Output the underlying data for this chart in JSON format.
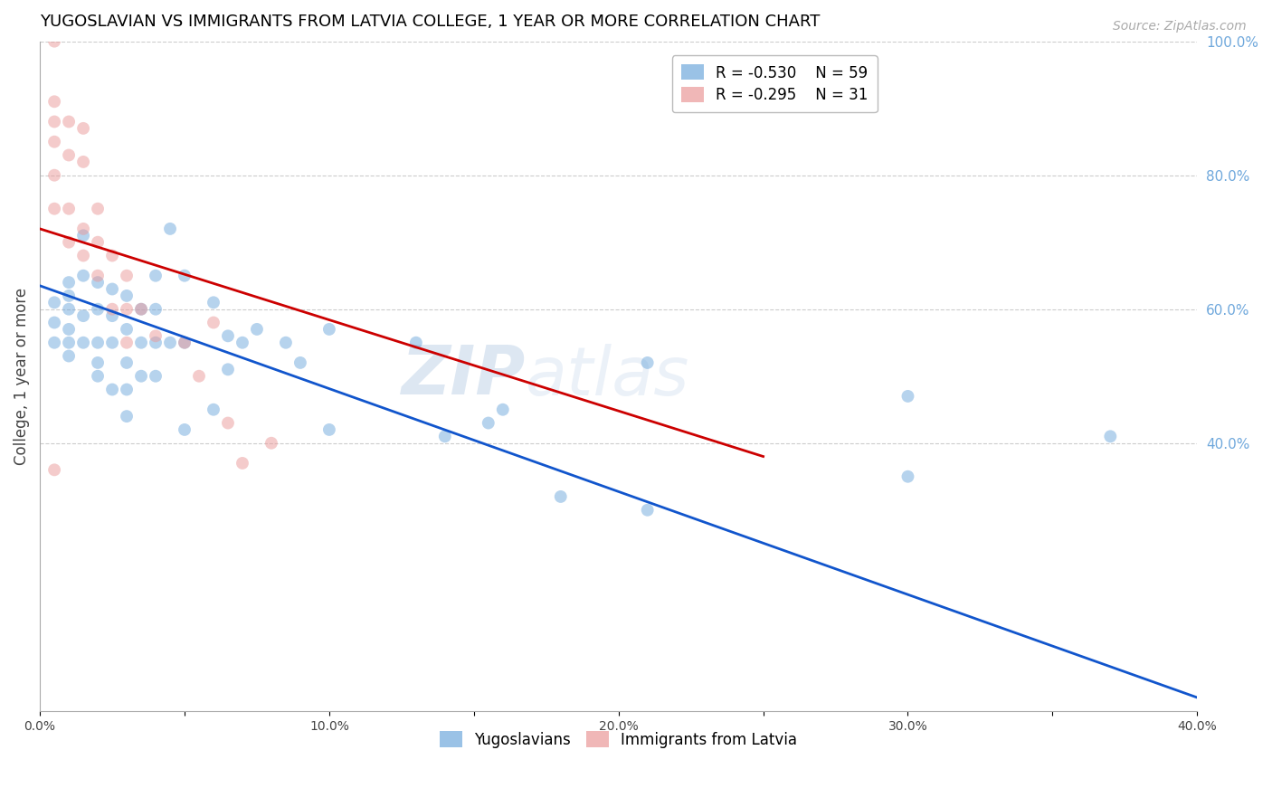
{
  "title": "YUGOSLAVIAN VS IMMIGRANTS FROM LATVIA COLLEGE, 1 YEAR OR MORE CORRELATION CHART",
  "source": "Source: ZipAtlas.com",
  "ylabel": "College, 1 year or more",
  "xlim": [
    0.0,
    0.4
  ],
  "ylim": [
    0.0,
    1.0
  ],
  "yticks_right": [
    0.4,
    0.6,
    0.8,
    1.0
  ],
  "ytick_labels_right": [
    "40.0%",
    "60.0%",
    "80.0%",
    "100.0%"
  ],
  "xticks": [
    0.0,
    0.05,
    0.1,
    0.15,
    0.2,
    0.25,
    0.3,
    0.35,
    0.4
  ],
  "xtick_labels": [
    "0.0%",
    "",
    "10.0%",
    "",
    "20.0%",
    "",
    "30.0%",
    "",
    "40.0%"
  ],
  "blue_color": "#6fa8dc",
  "pink_color": "#ea9999",
  "blue_line_color": "#1155cc",
  "pink_line_color": "#cc0000",
  "watermark_zip": "ZIP",
  "watermark_atlas": "atlas",
  "legend_R_blue": "R = -0.530",
  "legend_N_blue": "N = 59",
  "legend_R_pink": "R = -0.295",
  "legend_N_pink": "N = 31",
  "legend_label_blue": "Yugoslavians",
  "legend_label_pink": "Immigrants from Latvia",
  "blue_x": [
    0.005,
    0.005,
    0.005,
    0.01,
    0.01,
    0.01,
    0.01,
    0.01,
    0.01,
    0.015,
    0.015,
    0.015,
    0.015,
    0.02,
    0.02,
    0.02,
    0.02,
    0.02,
    0.025,
    0.025,
    0.025,
    0.025,
    0.03,
    0.03,
    0.03,
    0.03,
    0.03,
    0.035,
    0.035,
    0.035,
    0.04,
    0.04,
    0.04,
    0.04,
    0.045,
    0.045,
    0.05,
    0.05,
    0.05,
    0.06,
    0.06,
    0.065,
    0.065,
    0.07,
    0.075,
    0.085,
    0.09,
    0.1,
    0.1,
    0.13,
    0.14,
    0.155,
    0.16,
    0.18,
    0.21,
    0.21,
    0.3,
    0.3,
    0.37
  ],
  "blue_y": [
    0.61,
    0.58,
    0.55,
    0.64,
    0.62,
    0.6,
    0.57,
    0.55,
    0.53,
    0.71,
    0.65,
    0.59,
    0.55,
    0.64,
    0.6,
    0.55,
    0.52,
    0.5,
    0.63,
    0.59,
    0.55,
    0.48,
    0.62,
    0.57,
    0.52,
    0.48,
    0.44,
    0.6,
    0.55,
    0.5,
    0.65,
    0.6,
    0.55,
    0.5,
    0.72,
    0.55,
    0.65,
    0.55,
    0.42,
    0.61,
    0.45,
    0.56,
    0.51,
    0.55,
    0.57,
    0.55,
    0.52,
    0.57,
    0.42,
    0.55,
    0.41,
    0.43,
    0.45,
    0.32,
    0.52,
    0.3,
    0.47,
    0.35,
    0.41
  ],
  "pink_x": [
    0.005,
    0.005,
    0.005,
    0.005,
    0.005,
    0.005,
    0.005,
    0.01,
    0.01,
    0.01,
    0.01,
    0.015,
    0.015,
    0.015,
    0.015,
    0.02,
    0.02,
    0.02,
    0.025,
    0.025,
    0.03,
    0.03,
    0.03,
    0.035,
    0.04,
    0.05,
    0.055,
    0.06,
    0.065,
    0.07,
    0.08
  ],
  "pink_y": [
    1.0,
    0.91,
    0.88,
    0.85,
    0.8,
    0.75,
    0.36,
    0.88,
    0.83,
    0.75,
    0.7,
    0.87,
    0.82,
    0.72,
    0.68,
    0.75,
    0.7,
    0.65,
    0.68,
    0.6,
    0.65,
    0.6,
    0.55,
    0.6,
    0.56,
    0.55,
    0.5,
    0.58,
    0.43,
    0.37,
    0.4
  ],
  "blue_trend_x": [
    0.0,
    0.4
  ],
  "blue_trend_y": [
    0.635,
    0.02
  ],
  "pink_trend_x": [
    0.0,
    0.25
  ],
  "pink_trend_y": [
    0.72,
    0.38
  ],
  "background_color": "#ffffff",
  "grid_color": "#cccccc",
  "title_color": "#000000",
  "right_axis_color": "#6fa8dc",
  "marker_size": 100,
  "marker_alpha": 0.5,
  "line_width": 2.0
}
